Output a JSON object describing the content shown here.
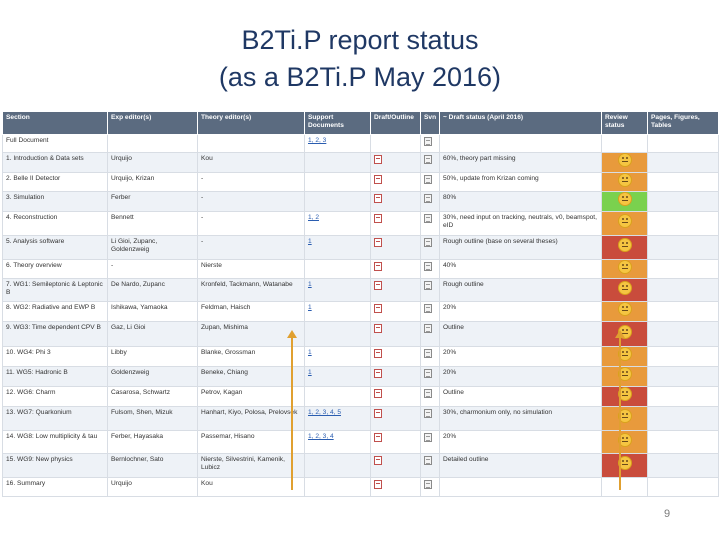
{
  "title": {
    "line1": "B2Ti.P report status",
    "line2": "(as a B2Ti.P May 2016)"
  },
  "colors": {
    "green": "#7ad14e",
    "red": "#c94c3c",
    "orange": "#e89a3c",
    "face": "#f5c542"
  },
  "table": {
    "headers": [
      "Section",
      "Exp editor(s)",
      "Theory editor(s)",
      "Support Documents",
      "Draft/Outline",
      "Svn",
      "~ Draft status (April 2016)",
      "Review status",
      "Pages, Figures, Tables"
    ],
    "rows": [
      {
        "section": "Full Document",
        "exp": "",
        "theory": "",
        "support": "1, 2, 3",
        "status": "",
        "review": ""
      },
      {
        "section": "1. Introduction & Data sets",
        "exp": "Urquijo",
        "theory": "Kou",
        "support": "",
        "status": "60%, theory part missing",
        "review": "orange"
      },
      {
        "section": "2. Belle II Detector",
        "exp": "Urquijo, Krizan",
        "theory": "-",
        "support": "",
        "status": "50%, update from Krizan coming",
        "review": "orange"
      },
      {
        "section": "3. Simulation",
        "exp": "Ferber",
        "theory": "-",
        "support": "",
        "status": "80%",
        "review": "green"
      },
      {
        "section": "4. Reconstruction",
        "exp": "Bennett",
        "theory": "-",
        "support": "1, 2",
        "status": "30%, need input on tracking, neutrals, v0, beamspot, eID",
        "review": "orange"
      },
      {
        "section": "5. Analysis software",
        "exp": "Li Gioi, Zupanc, Goldenzweig",
        "theory": "-",
        "support": "1",
        "status": "Rough outline (base on several theses)",
        "review": "red"
      },
      {
        "section": "6. Theory overview",
        "exp": "-",
        "theory": "Nierste",
        "support": "",
        "status": "40%",
        "review": "orange"
      },
      {
        "section": "7. WG1: Semileptonic & Leptonic B",
        "exp": "De Nardo, Zupanc",
        "theory": "Kronfeld, Tackmann, Watanabe",
        "support": "1",
        "status": "Rough outline",
        "review": "red"
      },
      {
        "section": "8. WG2: Radiative and EWP B",
        "exp": "Ishikawa, Yamaoka",
        "theory": "Feldman, Haisch",
        "support": "1",
        "status": "20%",
        "review": "orange"
      },
      {
        "section": "9. WG3: Time dependent CPV B",
        "exp": "Gaz, Li Gioi",
        "theory": "Zupan, Mishima",
        "support": "",
        "status": "Outline",
        "review": "red"
      },
      {
        "section": "10. WG4: Phi 3",
        "exp": "Libby",
        "theory": "Blanke, Grossman",
        "support": "1",
        "status": "20%",
        "review": "orange"
      },
      {
        "section": "11. WG5: Hadronic B",
        "exp": "Goldenzweig",
        "theory": "Beneke, Chiang",
        "support": "1",
        "status": "20%",
        "review": "orange"
      },
      {
        "section": "12. WG6: Charm",
        "exp": "Casarosa, Schwartz",
        "theory": "Petrov, Kagan",
        "support": "",
        "status": "Outline",
        "review": "red"
      },
      {
        "section": "13. WG7: Quarkonium",
        "exp": "Fulsom, Shen, Mizuk",
        "theory": "Hanhart, Kiyo, Polosa, Prelovsek",
        "support": "1, 2, 3, 4, 5",
        "status": "30%, charmonium only, no simulation",
        "review": "orange"
      },
      {
        "section": "14. WG8: Low multiplicity & tau",
        "exp": "Ferber, Hayasaka",
        "theory": "Passemar, Hisano",
        "support": "1, 2, 3, 4",
        "status": "20%",
        "review": "orange"
      },
      {
        "section": "15. WG9: New physics",
        "exp": "Bernlochner, Sato",
        "theory": "Nierste, Silvestrini, Kamenik, Lubicz",
        "support": "",
        "status": "Detailed outline",
        "review": "red"
      },
      {
        "section": "16. Summary",
        "exp": "Urquijo",
        "theory": "Kou",
        "support": "",
        "status": "",
        "review": ""
      }
    ]
  },
  "page_number": "9"
}
